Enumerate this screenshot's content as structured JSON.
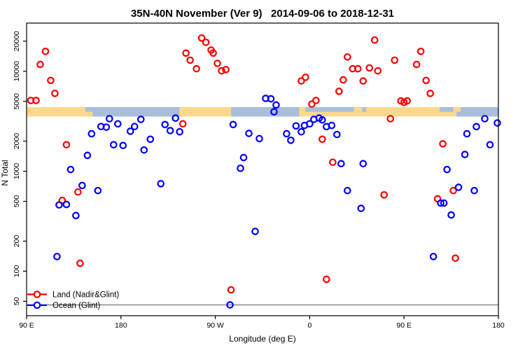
{
  "chart_data": {
    "type": "scatter",
    "title": "35N-40N November (Ver 9)   2014-09-06 to 2018-12-31",
    "xlabel": "Longitude (deg E)",
    "ylabel": "N Total",
    "grid": false,
    "legend_position": "bottom-left",
    "x_axis": {
      "note": "longitude axis wraps 450 degrees starting at 90E",
      "range_deg": [
        90,
        540
      ],
      "ticks": [
        {
          "v": 90,
          "label": "90 E"
        },
        {
          "v": 180,
          "label": "180"
        },
        {
          "v": 270,
          "label": "90 W"
        },
        {
          "v": 360,
          "label": "0"
        },
        {
          "v": 450,
          "label": "90 E"
        },
        {
          "v": 540,
          "label": "180"
        }
      ]
    },
    "y_axis": {
      "scale": "log",
      "ticks": [
        50,
        100,
        200,
        500,
        1000,
        2000,
        5000,
        10000,
        20000
      ],
      "range": [
        40,
        26000
      ]
    },
    "reference_line": {
      "n": 46,
      "color": "#808080"
    },
    "land_ocean_band": {
      "land_color": "#fbd98c",
      "ocean_color": "#a9bedb",
      "segments": [
        {
          "from": 90,
          "to": 145,
          "type": "land"
        },
        {
          "from": 145,
          "to": 236,
          "type": "ocean"
        },
        {
          "from": 236,
          "to": 285,
          "type": "land"
        },
        {
          "from": 285,
          "to": 350,
          "type": "ocean"
        },
        {
          "from": 350,
          "to": 500,
          "type": "land"
        },
        {
          "from": 500,
          "to": 540,
          "type": "ocean"
        }
      ],
      "patches": [
        {
          "from": 139,
          "to": 146,
          "type": "land",
          "part": "top"
        },
        {
          "from": 145,
          "to": 153,
          "type": "land",
          "part": "bottom"
        },
        {
          "from": 356,
          "to": 402,
          "type": "ocean",
          "part": "top"
        },
        {
          "from": 410,
          "to": 414,
          "type": "ocean",
          "part": "top"
        },
        {
          "from": 484,
          "to": 497,
          "type": "ocean",
          "part": "top"
        },
        {
          "from": 500,
          "to": 504,
          "type": "land",
          "part": "top"
        }
      ]
    },
    "series": [
      {
        "name": "Land (Nadir&Glint)",
        "color": "#ff0000",
        "points": [
          [
            94,
            5100
          ],
          [
            99,
            5100
          ],
          [
            103,
            11700
          ],
          [
            108,
            15800
          ],
          [
            113,
            8100
          ],
          [
            117,
            6000
          ],
          [
            128,
            1840
          ],
          [
            124,
            510
          ],
          [
            139,
            620
          ],
          [
            141,
            120
          ],
          [
            242,
            15200
          ],
          [
            239,
            2980
          ],
          [
            246,
            12900
          ],
          [
            252,
            10600
          ],
          [
            257,
            21500
          ],
          [
            261,
            19500
          ],
          [
            266,
            16300
          ],
          [
            268,
            15200
          ],
          [
            272,
            12000
          ],
          [
            276,
            10100
          ],
          [
            280,
            10400
          ],
          [
            285,
            65
          ],
          [
            352,
            8000
          ],
          [
            356,
            8700
          ],
          [
            362,
            4700
          ],
          [
            366,
            5100
          ],
          [
            372,
            2090
          ],
          [
            376,
            83
          ],
          [
            382,
            1230
          ],
          [
            388,
            6300
          ],
          [
            392,
            8200
          ],
          [
            396,
            13900
          ],
          [
            401,
            10600
          ],
          [
            406,
            10600
          ],
          [
            411,
            8000
          ],
          [
            417,
            10800
          ],
          [
            422,
            20500
          ],
          [
            425,
            10100
          ],
          [
            431,
            580
          ],
          [
            437,
            3350
          ],
          [
            441,
            12900
          ],
          [
            447,
            5050
          ],
          [
            450,
            4880
          ],
          [
            453,
            5050
          ],
          [
            462,
            11700
          ],
          [
            466,
            15800
          ],
          [
            471,
            8100
          ],
          [
            475,
            6000
          ],
          [
            482,
            530
          ],
          [
            487,
            1880
          ],
          [
            497,
            640
          ],
          [
            499,
            135
          ]
        ]
      },
      {
        "name": "Ocean (Glint)",
        "color": "#0000ff",
        "points": [
          [
            119,
            140
          ],
          [
            121,
            460
          ],
          [
            128,
            465
          ],
          [
            132,
            1040
          ],
          [
            137,
            360
          ],
          [
            143,
            720
          ],
          [
            148,
            1440
          ],
          [
            152,
            2370
          ],
          [
            158,
            640
          ],
          [
            161,
            2800
          ],
          [
            166,
            2760
          ],
          [
            169,
            3350
          ],
          [
            173,
            1840
          ],
          [
            177,
            2980
          ],
          [
            182,
            1810
          ],
          [
            189,
            2510
          ],
          [
            193,
            2800
          ],
          [
            199,
            3300
          ],
          [
            202,
            1630
          ],
          [
            208,
            2090
          ],
          [
            218,
            750
          ],
          [
            222,
            2930
          ],
          [
            227,
            2550
          ],
          [
            232,
            3400
          ],
          [
            236,
            2480
          ],
          [
            284,
            46
          ],
          [
            287,
            2930
          ],
          [
            294,
            1070
          ],
          [
            297,
            1370
          ],
          [
            302,
            2390
          ],
          [
            308,
            250
          ],
          [
            312,
            2120
          ],
          [
            318,
            5350
          ],
          [
            323,
            5300
          ],
          [
            326,
            3930
          ],
          [
            328,
            4600
          ],
          [
            338,
            2370
          ],
          [
            342,
            2040
          ],
          [
            347,
            2840
          ],
          [
            352,
            2480
          ],
          [
            355,
            2870
          ],
          [
            360,
            2980
          ],
          [
            364,
            3300
          ],
          [
            369,
            3400
          ],
          [
            372,
            3260
          ],
          [
            376,
            2790
          ],
          [
            381,
            2870
          ],
          [
            386,
            2330
          ],
          [
            390,
            1190
          ],
          [
            396,
            640
          ],
          [
            409,
            425
          ],
          [
            411,
            1190
          ],
          [
            478,
            140
          ],
          [
            485,
            480
          ],
          [
            488,
            480
          ],
          [
            491,
            1040
          ],
          [
            495,
            365
          ],
          [
            502,
            690
          ],
          [
            508,
            1470
          ],
          [
            510,
            2370
          ],
          [
            517,
            640
          ],
          [
            519,
            2790
          ],
          [
            527,
            3350
          ],
          [
            532,
            1840
          ],
          [
            539,
            3040
          ]
        ]
      }
    ]
  }
}
